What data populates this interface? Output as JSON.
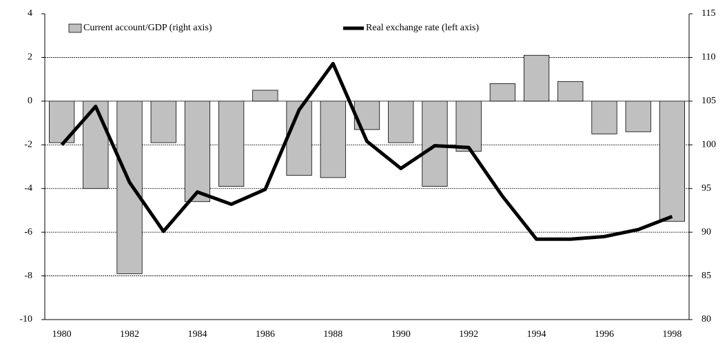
{
  "chart_data": {
    "type": "bar_line",
    "categories": [
      "1980",
      null,
      "1982",
      null,
      "1984",
      null,
      "1986",
      null,
      "1988",
      null,
      "1990",
      null,
      "1992",
      null,
      "1994",
      null,
      "1996",
      null,
      "1998"
    ],
    "series": [
      {
        "name": "Current account/GDP (right axis)",
        "type": "bar",
        "color": "#c0c0c0",
        "axis": "y",
        "values": [
          -1.9,
          -4.0,
          -7.9,
          -1.9,
          -4.6,
          -3.9,
          0.5,
          -3.4,
          -3.5,
          -1.3,
          -1.9,
          -3.9,
          -2.3,
          0.8,
          2.1,
          0.9,
          -1.5,
          -1.4,
          -5.5
        ]
      },
      {
        "name": "Real exchange rate (left axis)",
        "type": "line",
        "color": "#000000",
        "axis": "y2",
        "values": [
          100.0,
          104.4,
          95.7,
          90.1,
          94.6,
          93.2,
          94.9,
          104.0,
          109.3,
          100.4,
          97.3,
          99.9,
          99.7,
          94.1,
          89.2,
          89.2,
          89.5,
          90.3,
          91.8
        ]
      }
    ],
    "ylim": [
      -10,
      4
    ],
    "yticks": [
      -10,
      -8,
      -6,
      -4,
      -2,
      0,
      2,
      4
    ],
    "y2lim": [
      80,
      115
    ],
    "y2ticks": [
      80,
      85,
      90,
      95,
      100,
      105,
      110,
      115
    ],
    "grid": true
  }
}
